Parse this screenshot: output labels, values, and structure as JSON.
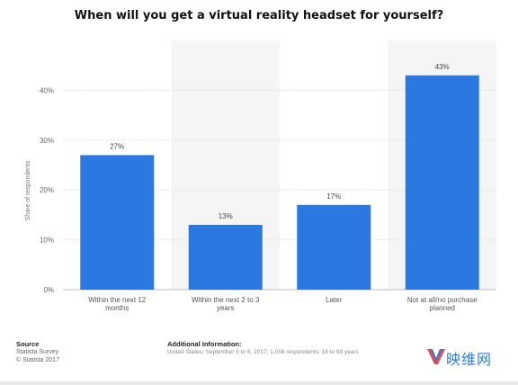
{
  "chart_data": {
    "type": "bar",
    "title": "When will you get a virtual reality headset for yourself?",
    "ylabel": "Share of respondents",
    "ylim": [
      0,
      50
    ],
    "yticks": [
      "0%",
      "10%",
      "20%",
      "30%",
      "40%"
    ],
    "ytick_values": [
      0,
      10,
      20,
      30,
      40
    ],
    "categories": [
      [
        "Within the next 12",
        "months"
      ],
      [
        "Within the next 2 to 3",
        "years"
      ],
      [
        "Later"
      ],
      [
        "Not at all/no purchase",
        "planned"
      ]
    ],
    "values": [
      27,
      13,
      17,
      43
    ],
    "value_labels": [
      "27%",
      "13%",
      "17%",
      "43%"
    ],
    "bar_color": "#2b78e0",
    "band_color": "#f5f5f5",
    "grid": true
  },
  "footer": {
    "source_heading": "Source",
    "source_lines": [
      "Statista Survey",
      "© Statista 2017"
    ],
    "info_heading": "Additional Information:",
    "info_text": "United States; September 5 to 6, 2017; 1,058 respondents; 18 to 69 years"
  },
  "logo": {
    "text": "映维网",
    "colors": [
      "#e8393b",
      "#2a7de1"
    ]
  }
}
